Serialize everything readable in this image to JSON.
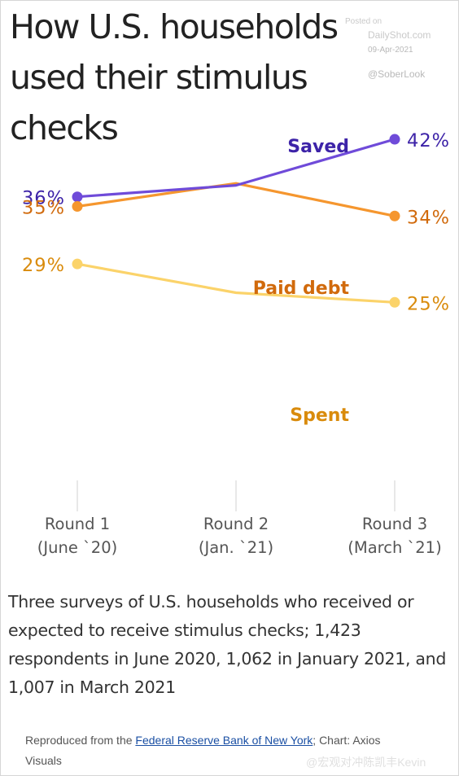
{
  "title": "How U.S. households used their stimulus checks",
  "watermark": {
    "posted": "Posted on",
    "site": "DailyShot.com",
    "date": "09-Apr-2021",
    "handle": "@SoberLook"
  },
  "chart_data": {
    "type": "line",
    "categories": [
      [
        "Round 1",
        "(June `20)"
      ],
      [
        "Round 2",
        "(Jan. `21)"
      ],
      [
        "Round 3",
        "(March `21)"
      ]
    ],
    "ylim": [
      22,
      44
    ],
    "series": [
      {
        "name": "Saved",
        "color": "#6f4bd9",
        "label_color": "#3d23a8",
        "values": [
          36,
          37.2,
          42
        ],
        "start_label": "36%",
        "end_label": "42%"
      },
      {
        "name": "Paid debt",
        "color": "#f5962e",
        "label_color": "#d16a0c",
        "values": [
          35,
          37.4,
          34
        ],
        "start_label": "35%",
        "end_label": "34%"
      },
      {
        "name": "Spent",
        "color": "#fbd36a",
        "label_color": "#d98b0c",
        "values": [
          29,
          26,
          25
        ],
        "start_label": "29%",
        "end_label": "25%"
      }
    ]
  },
  "caption": "Three surveys of U.S. households who received or expected to receive stimulus checks; 1,423 respondents in June 2020, 1,062 in January 2021, and 1,007 in March 2021",
  "source": {
    "prefix": "Reproduced from the ",
    "link": "Federal Reserve Bank of New York",
    "suffix": "; Chart: Axios Visuals"
  },
  "weibo_watermark": "@宏观对冲陈凯丰Kevin"
}
